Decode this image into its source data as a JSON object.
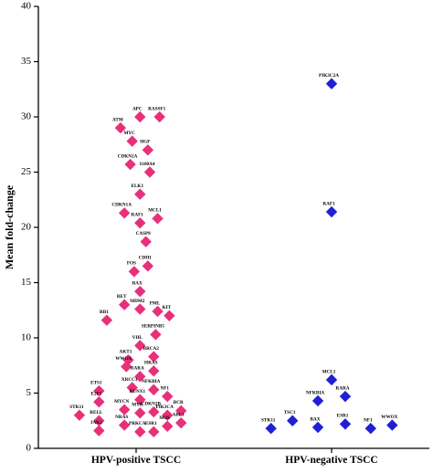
{
  "chart_data": {
    "type": "scatter",
    "title": "",
    "xlabel": "",
    "ylabel": "Mean fold-change",
    "ylim": [
      0,
      40
    ],
    "yticks": [
      0,
      5,
      10,
      15,
      20,
      25,
      30,
      35,
      40
    ],
    "categories": [
      "HPV-positive TSCC",
      "HPV-negative TSCC"
    ],
    "series": [
      {
        "category": "HPV-positive TSCC",
        "color": "#e8307a",
        "marker": "diamond",
        "points": [
          {
            "label": "APC",
            "x": 0.02,
            "y": 30.0
          },
          {
            "label": "RASSF1",
            "x": 0.12,
            "y": 30.0
          },
          {
            "label": "ATM",
            "x": -0.08,
            "y": 29.0
          },
          {
            "label": "MYC",
            "x": -0.02,
            "y": 27.8
          },
          {
            "label": "HGF",
            "x": 0.06,
            "y": 27.0
          },
          {
            "label": "CDKN2A",
            "x": -0.03,
            "y": 25.7
          },
          {
            "label": "S100A4",
            "x": 0.07,
            "y": 25.0
          },
          {
            "label": "ELK1",
            "x": 0.02,
            "y": 23.0
          },
          {
            "label": "CDKN1A",
            "x": -0.06,
            "y": 21.3
          },
          {
            "label": "MCL1",
            "x": 0.11,
            "y": 20.8
          },
          {
            "label": "RAF1",
            "x": 0.02,
            "y": 20.4
          },
          {
            "label": "CASP8",
            "x": 0.05,
            "y": 18.7
          },
          {
            "label": "CDH1",
            "x": 0.06,
            "y": 16.5
          },
          {
            "label": "FOS",
            "x": -0.01,
            "y": 16.0
          },
          {
            "label": "BAX",
            "x": 0.02,
            "y": 14.2
          },
          {
            "label": "RET",
            "x": -0.06,
            "y": 13.0
          },
          {
            "label": "MDM2",
            "x": 0.02,
            "y": 12.6
          },
          {
            "label": "KIT",
            "x": 0.17,
            "y": 12.0
          },
          {
            "label": "PML",
            "x": 0.11,
            "y": 12.4
          },
          {
            "label": "RB1",
            "x": -0.15,
            "y": 11.6
          },
          {
            "label": "SERPINB5",
            "x": 0.1,
            "y": 10.3
          },
          {
            "label": "VHL",
            "x": 0.02,
            "y": 9.3
          },
          {
            "label": "BRCA2",
            "x": 0.09,
            "y": 8.3
          },
          {
            "label": "AKT1",
            "x": -0.04,
            "y": 8.0
          },
          {
            "label": "HRAS",
            "x": 0.09,
            "y": 7.0
          },
          {
            "label": "WWOX",
            "x": -0.05,
            "y": 7.4
          },
          {
            "label": "RARA",
            "x": 0.02,
            "y": 6.5
          },
          {
            "label": "XRCC1",
            "x": -0.02,
            "y": 5.5
          },
          {
            "label": "NFKBIA",
            "x": 0.09,
            "y": 5.3
          },
          {
            "label": "ETS1",
            "x": -0.19,
            "y": 5.2
          },
          {
            "label": "RUNX1",
            "x": 0.02,
            "y": 4.4
          },
          {
            "label": "NF1",
            "x": 0.16,
            "y": 4.7
          },
          {
            "label": "E2F1",
            "x": -0.19,
            "y": 4.2
          },
          {
            "label": "BCR",
            "x": 0.23,
            "y": 3.4
          },
          {
            "label": "MYCN",
            "x": -0.06,
            "y": 3.5
          },
          {
            "label": "MYB",
            "x": 0.02,
            "y": 3.2
          },
          {
            "label": "CDKN2B",
            "x": 0.09,
            "y": 3.3
          },
          {
            "label": "PIK3CA",
            "x": 0.16,
            "y": 3.0
          },
          {
            "label": "STK11",
            "x": -0.29,
            "y": 3.0
          },
          {
            "label": "RELL",
            "x": -0.19,
            "y": 2.5
          },
          {
            "label": "NRAS",
            "x": -0.06,
            "y": 2.1
          },
          {
            "label": "MOS",
            "x": 0.16,
            "y": 2.0
          },
          {
            "label": "ABL1",
            "x": 0.23,
            "y": 2.3
          },
          {
            "label": "JAK2",
            "x": -0.19,
            "y": 1.6
          },
          {
            "label": "PRKCA",
            "x": 0.02,
            "y": 1.5
          },
          {
            "label": "ESR1",
            "x": 0.09,
            "y": 1.5
          }
        ]
      },
      {
        "category": "HPV-negative TSCC",
        "color": "#1f1fd6",
        "marker": "diamond",
        "points": [
          {
            "label": "PIK3C2A",
            "x": 0.0,
            "y": 33.0
          },
          {
            "label": "RAF1",
            "x": 0.0,
            "y": 21.4
          },
          {
            "label": "MCL1",
            "x": 0.0,
            "y": 6.2
          },
          {
            "label": "NFKBIA",
            "x": -0.07,
            "y": 4.3
          },
          {
            "label": "RARA",
            "x": 0.07,
            "y": 4.7
          },
          {
            "label": "STK11",
            "x": -0.31,
            "y": 1.8
          },
          {
            "label": "TSC1",
            "x": -0.2,
            "y": 2.5
          },
          {
            "label": "BAX",
            "x": -0.07,
            "y": 1.9
          },
          {
            "label": "ESR1",
            "x": 0.07,
            "y": 2.2
          },
          {
            "label": "NF1",
            "x": 0.2,
            "y": 1.8
          },
          {
            "label": "WWOX",
            "x": 0.31,
            "y": 2.1
          }
        ]
      }
    ]
  }
}
